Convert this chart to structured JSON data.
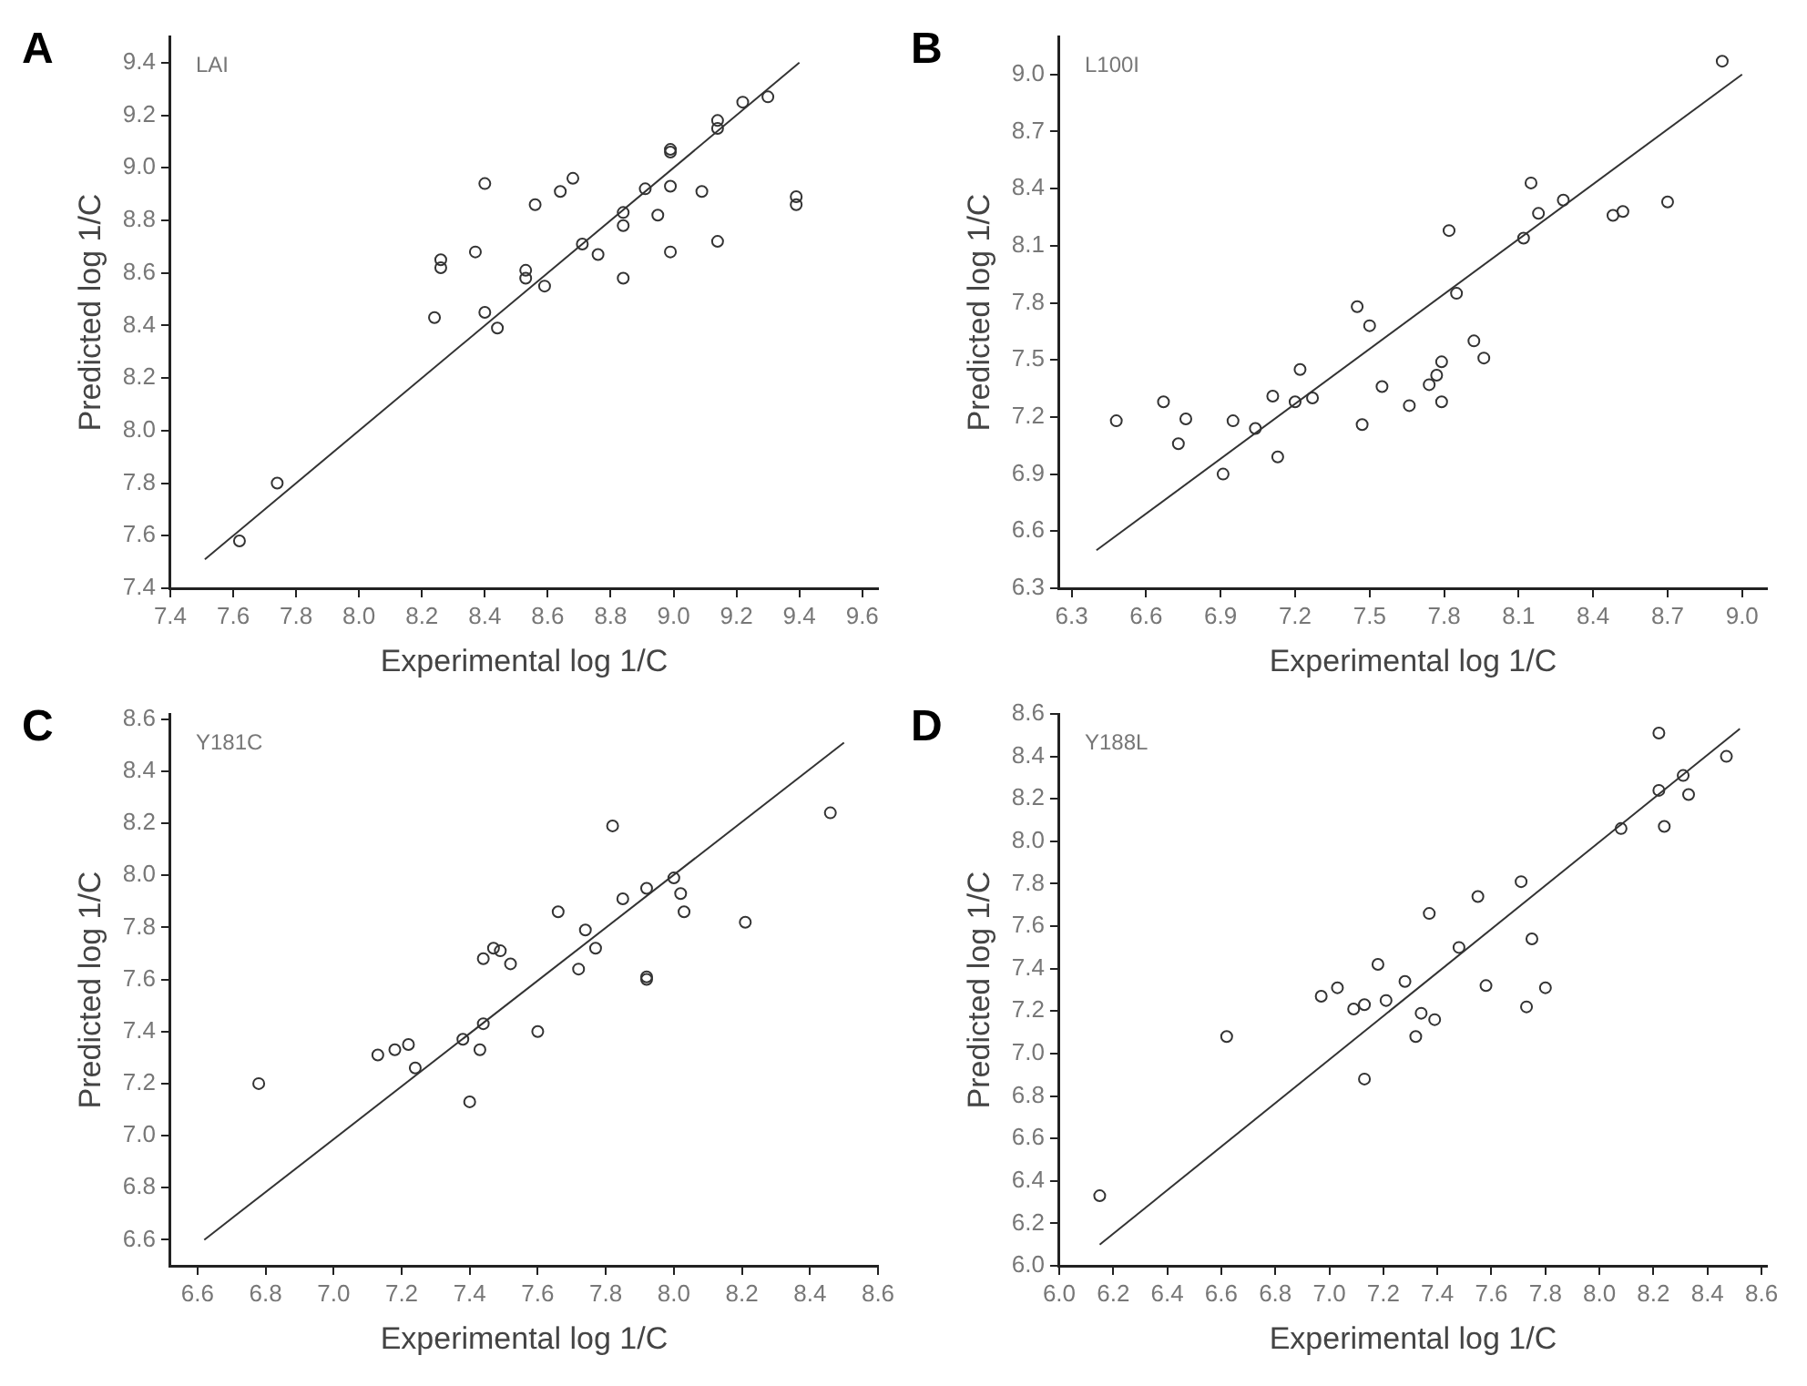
{
  "chart_data": [
    {
      "type": "scatter",
      "title": "A",
      "annotations": [
        "LAI"
      ],
      "xlabel": "Experimental log 1/C",
      "ylabel": "Predicted log 1/C",
      "xlim": [
        7.4,
        9.65
      ],
      "ylim": [
        7.4,
        9.5
      ],
      "xticks": [
        7.4,
        7.6,
        7.8,
        {
          "value": 8,
          "label": "8.0"
        },
        8.2,
        8.4,
        8.6,
        8.8,
        {
          "value": 9,
          "label": "9.0"
        },
        9.2,
        9.4,
        9.6
      ],
      "yticks": [
        7.4,
        7.6,
        7.8,
        {
          "value": 8,
          "label": "8.0"
        },
        8.2,
        8.4,
        8.6,
        8.8,
        {
          "value": 9,
          "label": "9.0"
        },
        9.2,
        9.4
      ],
      "grid": false,
      "legend": false,
      "series": [
        {
          "type": "scatter",
          "marker": "circle",
          "color": "#333333",
          "x": [
            7.62,
            7.74,
            8.24,
            8.26,
            8.26,
            8.37,
            8.4,
            8.4,
            8.44,
            8.53,
            8.53,
            8.56,
            8.59,
            8.64,
            8.68,
            8.71,
            8.76,
            8.84,
            8.84,
            8.84,
            8.91,
            8.95,
            8.99,
            8.99,
            8.99,
            8.99,
            9.09,
            9.14,
            9.14,
            9.14,
            9.22,
            9.3,
            9.39,
            9.39
          ],
          "values": [
            7.58,
            7.8,
            8.43,
            8.65,
            8.62,
            8.68,
            8.94,
            8.45,
            8.39,
            8.61,
            8.58,
            8.86,
            8.55,
            8.91,
            8.96,
            8.71,
            8.67,
            8.83,
            8.78,
            8.58,
            8.92,
            8.82,
            9.07,
            9.06,
            8.93,
            8.68,
            8.91,
            9.18,
            9.15,
            8.72,
            9.25,
            9.27,
            8.89,
            8.86
          ]
        },
        {
          "type": "line",
          "marker": "none",
          "line_style": "solid",
          "color": "#333333",
          "x": [
            7.51,
            9.4
          ],
          "values": [
            7.51,
            9.4
          ]
        }
      ]
    },
    {
      "type": "scatter",
      "title": "B",
      "annotations": [
        "L100I"
      ],
      "xlabel": "Experimental log 1/C",
      "ylabel": "Predicted log 1/C",
      "xlim": [
        6.25,
        9.1
      ],
      "ylim": [
        6.3,
        9.2
      ],
      "xticks": [
        6.3,
        6.6,
        6.9,
        7.2,
        7.5,
        7.8,
        8.1,
        8.4,
        8.7,
        {
          "value": 9,
          "label": "9.0"
        }
      ],
      "yticks": [
        6.3,
        6.6,
        6.9,
        7.2,
        7.5,
        7.8,
        8.1,
        8.4,
        8.7,
        {
          "value": 9,
          "label": "9.0"
        }
      ],
      "grid": false,
      "legend": false,
      "series": [
        {
          "type": "scatter",
          "marker": "circle",
          "color": "#333333",
          "x": [
            6.48,
            6.67,
            6.73,
            6.76,
            6.91,
            6.95,
            7.04,
            7.11,
            7.13,
            7.2,
            7.22,
            7.27,
            7.45,
            7.47,
            7.5,
            7.55,
            7.66,
            7.74,
            7.77,
            7.79,
            7.79,
            7.82,
            7.85,
            7.92,
            7.96,
            8.12,
            8.15,
            8.18,
            8.28,
            8.48,
            8.52,
            8.7,
            8.92
          ],
          "values": [
            7.18,
            7.28,
            7.06,
            7.19,
            6.9,
            7.18,
            7.14,
            7.31,
            6.99,
            7.28,
            7.45,
            7.3,
            7.78,
            7.16,
            7.68,
            7.36,
            7.26,
            7.37,
            7.42,
            7.49,
            7.28,
            8.18,
            7.85,
            7.6,
            7.51,
            8.14,
            8.43,
            8.27,
            8.34,
            8.26,
            8.28,
            8.33,
            9.07
          ]
        },
        {
          "type": "line",
          "marker": "none",
          "line_style": "solid",
          "color": "#333333",
          "x": [
            6.4,
            9.0
          ],
          "values": [
            6.5,
            9.0
          ]
        }
      ]
    },
    {
      "type": "scatter",
      "title": "C",
      "annotations": [
        "Y181C"
      ],
      "xlabel": "Experimental log 1/C",
      "ylabel": "Predicted log 1/C",
      "xlim": [
        6.52,
        8.6
      ],
      "ylim": [
        6.5,
        8.62
      ],
      "xticks": [
        6.6,
        6.8,
        {
          "value": 7,
          "label": "7.0"
        },
        7.2,
        7.4,
        7.6,
        7.8,
        {
          "value": 8,
          "label": "8.0"
        },
        8.2,
        8.4,
        8.6
      ],
      "yticks": [
        6.6,
        6.8,
        {
          "value": 7,
          "label": "7.0"
        },
        7.2,
        7.4,
        7.6,
        7.8,
        {
          "value": 8,
          "label": "8.0"
        },
        8.2,
        8.4,
        8.6
      ],
      "grid": false,
      "legend": false,
      "series": [
        {
          "type": "scatter",
          "marker": "circle",
          "color": "#333333",
          "x": [
            6.78,
            7.13,
            7.18,
            7.22,
            7.24,
            7.38,
            7.4,
            7.43,
            7.44,
            7.44,
            7.47,
            7.49,
            7.52,
            7.6,
            7.66,
            7.72,
            7.74,
            7.77,
            7.82,
            7.85,
            7.92,
            7.92,
            7.92,
            8.0,
            8.02,
            8.03,
            8.21,
            8.46
          ],
          "values": [
            7.2,
            7.31,
            7.33,
            7.35,
            7.26,
            7.37,
            7.13,
            7.33,
            7.43,
            7.68,
            7.72,
            7.71,
            7.66,
            7.4,
            7.86,
            7.64,
            7.79,
            7.72,
            8.19,
            7.91,
            7.95,
            7.61,
            7.6,
            7.99,
            7.93,
            7.86,
            7.82,
            8.24
          ]
        },
        {
          "type": "line",
          "marker": "none",
          "line_style": "solid",
          "color": "#333333",
          "x": [
            6.62,
            8.5
          ],
          "values": [
            6.6,
            8.51
          ]
        }
      ]
    },
    {
      "type": "scatter",
      "title": "D",
      "annotations": [
        "Y188L"
      ],
      "xlabel": "Experimental log 1/C",
      "ylabel": "Predicted log 1/C",
      "xlim": [
        6.0,
        8.62
      ],
      "ylim": [
        6.0,
        8.6
      ],
      "xticks": [
        {
          "value": 6,
          "label": "6.0"
        },
        6.2,
        6.4,
        6.6,
        6.8,
        {
          "value": 7,
          "label": "7.0"
        },
        7.2,
        7.4,
        7.6,
        7.8,
        {
          "value": 8,
          "label": "8.0"
        },
        8.2,
        8.4,
        8.6
      ],
      "yticks": [
        {
          "value": 6,
          "label": "6.0"
        },
        6.2,
        6.4,
        6.6,
        6.8,
        {
          "value": 7,
          "label": "7.0"
        },
        7.2,
        7.4,
        7.6,
        7.8,
        {
          "value": 8,
          "label": "8.0"
        },
        8.2,
        8.4,
        8.6
      ],
      "grid": false,
      "legend": false,
      "series": [
        {
          "type": "scatter",
          "marker": "circle",
          "color": "#333333",
          "x": [
            6.15,
            6.62,
            6.97,
            7.03,
            7.09,
            7.13,
            7.13,
            7.18,
            7.21,
            7.28,
            7.32,
            7.34,
            7.37,
            7.39,
            7.48,
            7.55,
            7.58,
            7.71,
            7.73,
            7.75,
            7.8,
            8.08,
            8.22,
            8.22,
            8.24,
            8.31,
            8.33,
            8.47
          ],
          "values": [
            6.33,
            7.08,
            7.27,
            7.31,
            7.21,
            7.23,
            6.88,
            7.42,
            7.25,
            7.34,
            7.08,
            7.19,
            7.66,
            7.16,
            7.5,
            7.74,
            7.32,
            7.81,
            7.22,
            7.54,
            7.31,
            8.06,
            8.51,
            8.24,
            8.07,
            8.31,
            8.22,
            8.4
          ]
        },
        {
          "type": "line",
          "marker": "none",
          "line_style": "solid",
          "color": "#333333",
          "x": [
            6.15,
            8.52
          ],
          "values": [
            6.1,
            8.53
          ]
        }
      ]
    }
  ]
}
